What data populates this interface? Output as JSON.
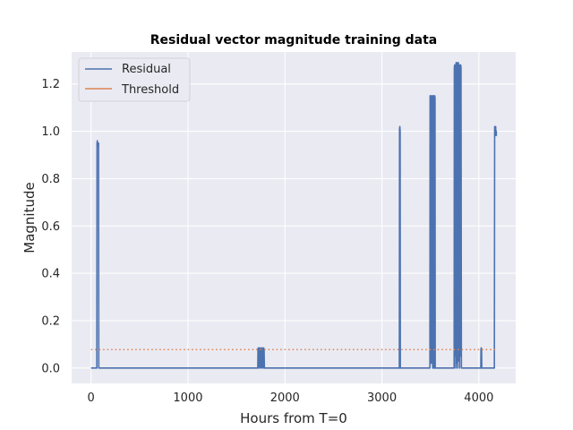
{
  "chart_data": {
    "type": "line",
    "title": "Residual vector magnitude training data",
    "xlabel": "Hours from T=0",
    "ylabel": "Magnitude",
    "xlim": [
      -200,
      4380
    ],
    "ylim": [
      -0.065,
      1.335
    ],
    "x_ticks": [
      0,
      1000,
      2000,
      3000,
      4000
    ],
    "y_ticks": [
      0.0,
      0.2,
      0.4,
      0.6,
      0.8,
      1.0,
      1.2
    ],
    "y_tick_labels": [
      "0.0",
      "0.2",
      "0.4",
      "0.6",
      "0.8",
      "1.0",
      "1.2"
    ],
    "grid": true,
    "legend_position": "top-left",
    "series": [
      {
        "name": "Residual",
        "color": "#4c72b0",
        "style": "solid",
        "x": [
          0,
          60,
          62,
          65,
          68,
          70,
          72,
          75,
          78,
          80,
          1720,
          1722,
          1725,
          1730,
          1735,
          1740,
          1745,
          1750,
          1755,
          1760,
          1765,
          1770,
          1775,
          1780,
          1785,
          1788,
          3180,
          3182,
          3185,
          3188,
          3190,
          3495,
          3497,
          3500,
          3503,
          3506,
          3509,
          3512,
          3515,
          3518,
          3521,
          3524,
          3527,
          3530,
          3533,
          3536,
          3540,
          3545,
          3548,
          3550,
          3745,
          3747,
          3750,
          3753,
          3756,
          3759,
          3762,
          3765,
          3768,
          3771,
          3774,
          3777,
          3780,
          3783,
          3786,
          3789,
          3792,
          3795,
          3798,
          3801,
          3804,
          3807,
          3810,
          3813,
          3816,
          3820,
          4020,
          4022,
          4025,
          4028,
          4030,
          4160,
          4163,
          4166,
          4170,
          4173,
          4176,
          4180,
          4180
        ],
        "y": [
          0,
          0,
          0.95,
          0.96,
          0.94,
          0.95,
          0.95,
          0.94,
          0.95,
          0,
          0,
          0.08,
          0.085,
          0.0,
          0.085,
          0.08,
          0.0,
          0.085,
          0.08,
          0.0,
          0.085,
          0.08,
          0.0,
          0.085,
          0.08,
          0,
          0,
          1.01,
          1.02,
          1.0,
          0,
          0,
          1.15,
          1.0,
          1.15,
          1.14,
          0.02,
          1.15,
          1.13,
          0.05,
          1.15,
          0.0,
          1.14,
          1.15,
          0.0,
          1.15,
          0.0,
          1.15,
          1.14,
          0,
          0,
          1.27,
          1.28,
          0.05,
          1.28,
          1.27,
          0.0,
          1.29,
          1.27,
          0.02,
          1.28,
          1.29,
          0.0,
          1.28,
          1.27,
          1.29,
          0.03,
          1.28,
          1.28,
          0.0,
          1.27,
          1.28,
          0.05,
          1.28,
          1.27,
          0,
          0,
          0.08,
          0.085,
          0.08,
          0,
          0,
          1.02,
          0.98,
          1.01,
          1.02,
          0.99,
          1.0,
          0.98
        ]
      },
      {
        "name": "Threshold",
        "color": "#dd8452",
        "style": "dotted",
        "x": [
          0,
          4180
        ],
        "y": [
          0.078,
          0.078
        ]
      }
    ]
  }
}
